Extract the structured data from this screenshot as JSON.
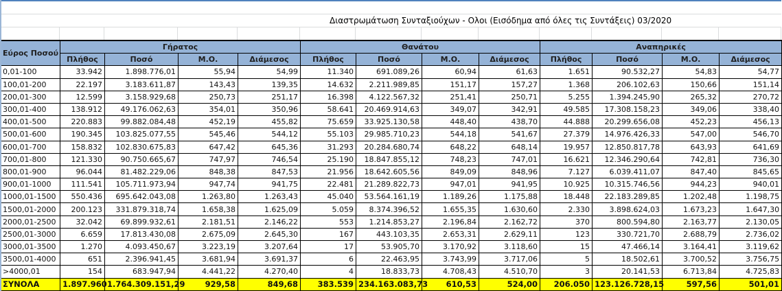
{
  "title": "Διαστρωμάτωση Συνταξιούχων - Ολοι   (Εισόδημα από όλες τις Συντάξεις) 03/2020",
  "colors": {
    "header_bg": "#95b3d7",
    "total_bg": "#ffff00"
  },
  "table": {
    "range_header": "Εύρος Ποσού",
    "groups": [
      "Γήρατος",
      "Θανάτου",
      "Αναπηρικές"
    ],
    "subheaders": [
      "Πλήθος",
      "Ποσό",
      "Μ.Ο.",
      "Διάμεσος"
    ],
    "rows": [
      [
        "0,01-100",
        "33.942",
        "1.898.776,01",
        "55,94",
        "54,99",
        "11.340",
        "691.089,26",
        "60,94",
        "61,63",
        "1.651",
        "90.532,27",
        "54,83",
        "54,77"
      ],
      [
        "100,01-200",
        "22.197",
        "3.183.611,87",
        "143,43",
        "139,35",
        "14.632",
        "2.211.989,85",
        "151,17",
        "157,27",
        "1.368",
        "206.102,63",
        "150,66",
        "151,14"
      ],
      [
        "200,01-300",
        "12.599",
        "3.158.929,68",
        "250,73",
        "251,17",
        "16.398",
        "4.122.567,32",
        "251,41",
        "250,71",
        "5.255",
        "1.394.245,90",
        "265,32",
        "270,72"
      ],
      [
        "300,01-400",
        "138.912",
        "49.176.062,63",
        "354,01",
        "350,96",
        "58.641",
        "20.469.914,63",
        "349,07",
        "342,91",
        "49.585",
        "17.308.158,23",
        "349,06",
        "338,40"
      ],
      [
        "400,01-500",
        "220.883",
        "99.882.084,48",
        "452,19",
        "455,82",
        "75.659",
        "33.925.130,58",
        "448,40",
        "438,70",
        "44.888",
        "20.299.656,08",
        "452,23",
        "456,13"
      ],
      [
        "500,01-600",
        "190.345",
        "103.825.077,55",
        "545,46",
        "544,12",
        "55.103",
        "29.985.710,23",
        "544,18",
        "541,67",
        "27.379",
        "14.976.426,33",
        "547,00",
        "546,70"
      ],
      [
        "600,01-700",
        "158.832",
        "102.830.675,83",
        "647,42",
        "645,36",
        "31.293",
        "20.284.680,74",
        "648,22",
        "648,14",
        "19.957",
        "12.850.817,78",
        "643,93",
        "641,69"
      ],
      [
        "700,01-800",
        "121.330",
        "90.750.665,67",
        "747,97",
        "746,54",
        "25.190",
        "18.847.855,12",
        "748,23",
        "747,01",
        "16.621",
        "12.346.290,64",
        "742,81",
        "736,30"
      ],
      [
        "800,01-900",
        "96.044",
        "81.482.229,06",
        "848,38",
        "847,53",
        "21.956",
        "18.642.605,56",
        "849,09",
        "848,96",
        "7.127",
        "6.039.411,07",
        "847,40",
        "845,65"
      ],
      [
        "900,01-1000",
        "111.541",
        "105.711.973,94",
        "947,74",
        "941,75",
        "22.481",
        "21.289.822,73",
        "947,01",
        "941,95",
        "10.925",
        "10.315.746,56",
        "944,23",
        "940,01"
      ],
      [
        "1000,01-1500",
        "550.436",
        "695.642.043,08",
        "1.263,80",
        "1.263,43",
        "45.040",
        "53.564.161,19",
        "1.189,26",
        "1.175,88",
        "18.448",
        "22.183.289,85",
        "1.202,48",
        "1.198,75"
      ],
      [
        "1500,01-2000",
        "200.123",
        "331.879.318,74",
        "1.658,38",
        "1.625,09",
        "5.059",
        "8.374.396,52",
        "1.655,35",
        "1.630,60",
        "2.330",
        "3.898.624,03",
        "1.673,23",
        "1.647,30"
      ],
      [
        "2000,01-2500",
        "32.042",
        "69.899.932,61",
        "2.181,51",
        "2.146,22",
        "553",
        "1.214.853,27",
        "2.196,84",
        "2.162,72",
        "370",
        "800.594,80",
        "2.163,77",
        "2.130,05"
      ],
      [
        "2500,01-3000",
        "6.659",
        "17.813.430,08",
        "2.675,09",
        "2.645,30",
        "167",
        "443.103,35",
        "2.653,31",
        "2.629,11",
        "123",
        "330.721,70",
        "2.688,79",
        "2.736,02"
      ],
      [
        "3000,01-3500",
        "1.270",
        "4.093.450,67",
        "3.223,19",
        "3.207,64",
        "17",
        "53.905,70",
        "3.170,92",
        "3.118,60",
        "15",
        "47.466,14",
        "3.164,41",
        "3.119,62"
      ],
      [
        "3500,01-4000",
        "651",
        "2.396.941,45",
        "3.681,94",
        "3.691,37",
        "6",
        "22.463,95",
        "3.743,99",
        "3.717,06",
        "5",
        "18.502,61",
        "3.700,52",
        "3.756,75"
      ],
      [
        ">4000,01",
        "154",
        "683.947,94",
        "4.441,22",
        "4.270,40",
        "4",
        "18.833,73",
        "4.708,43",
        "4.510,70",
        "3",
        "20.141,53",
        "6.713,84",
        "4.725,83"
      ]
    ],
    "total": [
      "ΣΥΝΟΛΑ",
      "1.897.960",
      "1.764.309.151,29",
      "929,58",
      "849,68",
      "383.539",
      "234.163.083,73",
      "610,53",
      "524,00",
      "206.050",
      "123.126.728,15",
      "597,56",
      "501,01"
    ]
  }
}
